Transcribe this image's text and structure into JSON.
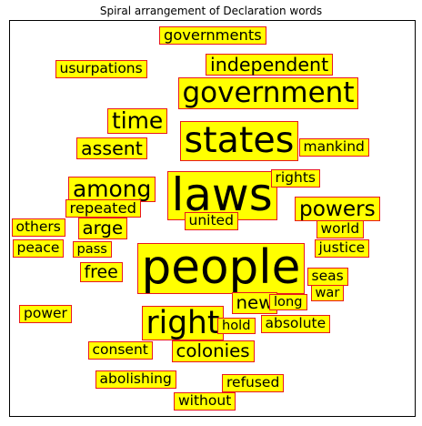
{
  "chart_data": {
    "type": "word_cloud",
    "title": "Spiral arrangement of Declaration words",
    "colors": {
      "box_fill": "#ffff00",
      "box_border": "#e8181e",
      "text": "#000000"
    },
    "words": [
      {
        "text": "people",
        "weight": 60
      },
      {
        "text": "laws",
        "weight": 58
      },
      {
        "text": "states",
        "weight": 46
      },
      {
        "text": "right",
        "weight": 40
      },
      {
        "text": "government",
        "weight": 36
      },
      {
        "text": "time",
        "weight": 29
      },
      {
        "text": "among",
        "weight": 29
      },
      {
        "text": "powers",
        "weight": 27
      },
      {
        "text": "independent",
        "weight": 24
      },
      {
        "text": "assent",
        "weight": 24
      },
      {
        "text": "colonies",
        "weight": 23
      },
      {
        "text": "new",
        "weight": 23
      },
      {
        "text": "arge",
        "weight": 23
      },
      {
        "text": "free",
        "weight": 22
      },
      {
        "text": "governments",
        "weight": 19
      },
      {
        "text": "mankind",
        "weight": 18
      },
      {
        "text": "repeated",
        "weight": 19
      },
      {
        "text": "rights",
        "weight": 18
      },
      {
        "text": "usurpations",
        "weight": 18
      },
      {
        "text": "united",
        "weight": 18
      },
      {
        "text": "refused",
        "weight": 18
      },
      {
        "text": "without",
        "weight": 18
      },
      {
        "text": "abolishing",
        "weight": 18
      },
      {
        "text": "consent",
        "weight": 18
      },
      {
        "text": "absolute",
        "weight": 18
      },
      {
        "text": "others",
        "weight": 18
      },
      {
        "text": "peace",
        "weight": 18
      },
      {
        "text": "justice",
        "weight": 18
      },
      {
        "text": "world",
        "weight": 18
      },
      {
        "text": "seas",
        "weight": 18
      },
      {
        "text": "power",
        "weight": 18
      },
      {
        "text": "pass",
        "weight": 17
      },
      {
        "text": "long",
        "weight": 17
      },
      {
        "text": "war",
        "weight": 17
      },
      {
        "text": "hold",
        "weight": 17
      }
    ]
  }
}
